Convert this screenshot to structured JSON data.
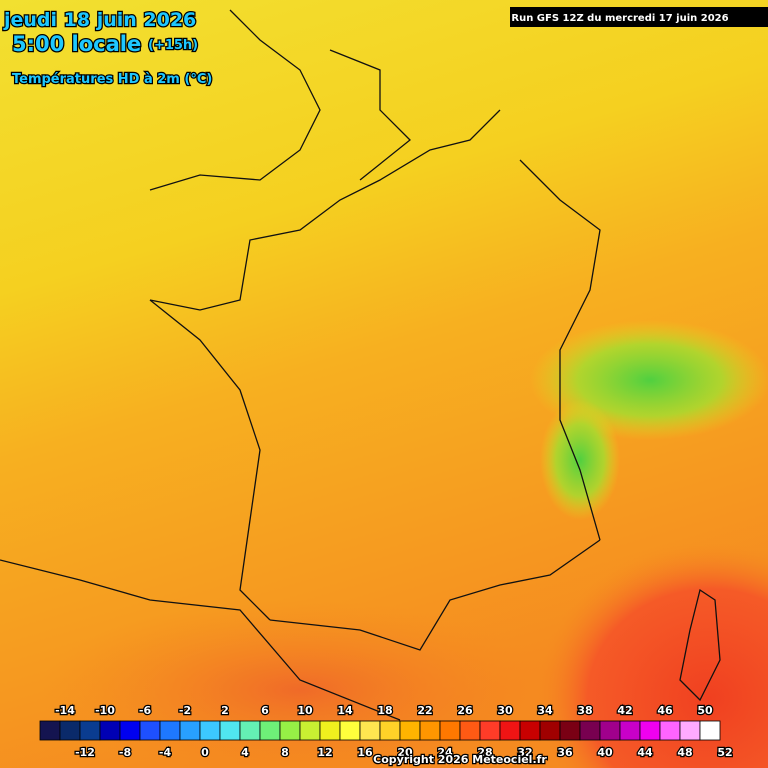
{
  "header": {
    "date": "jeudi 18 juin 2026",
    "time": "5:00 locale",
    "offset": "(+15h)",
    "variable": "Températures HD à 2m (°C)"
  },
  "run": "Run GFS 12Z du mercredi 17 juin 2026",
  "legend": {
    "top_labels": [
      -14,
      -10,
      -6,
      -2,
      2,
      6,
      10,
      14,
      18,
      22,
      26,
      30,
      34,
      38,
      42,
      46,
      50
    ],
    "bottom_labels": [
      -12,
      -8,
      -4,
      0,
      4,
      8,
      12,
      16,
      20,
      24,
      28,
      32,
      36,
      40,
      44,
      48,
      52
    ],
    "colors": [
      "#141450",
      "#0a2a6a",
      "#0a3c90",
      "#0000b4",
      "#0000f0",
      "#1e50ff",
      "#1e78ff",
      "#28a0ff",
      "#3cc8ff",
      "#50e6f0",
      "#64f0b4",
      "#6ef078",
      "#96f046",
      "#c8f032",
      "#f0f01e",
      "#ffff3c",
      "#ffe650",
      "#ffd228",
      "#ffb400",
      "#ff9600",
      "#ff7800",
      "#ff5a14",
      "#ff3c28",
      "#f01414",
      "#c80000",
      "#a00000",
      "#7a0014",
      "#780050",
      "#a0008c",
      "#c800c8",
      "#f000f0",
      "#ff64ff",
      "#ffaaff",
      "#ffffff"
    ]
  },
  "copyright": "Copyright 2026 Meteociel.fr"
}
